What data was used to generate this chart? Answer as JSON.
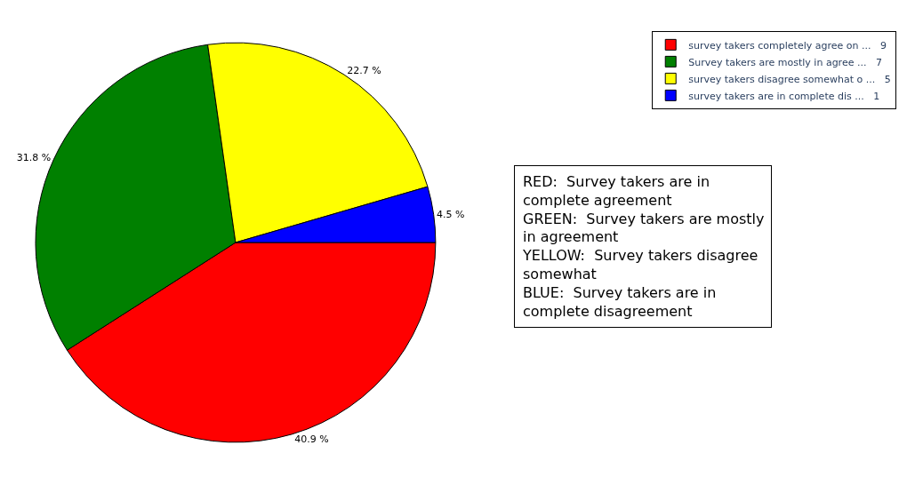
{
  "chart_data": {
    "type": "pie",
    "categories": [
      "survey takers completely agree on ...   9",
      "Survey takers are mostly in agree ...   7",
      "survey takers disagree somewhat o ...   5",
      "survey takers are in complete dis ...   1"
    ],
    "values": [
      40.9,
      31.8,
      22.7,
      4.5
    ],
    "value_labels": [
      "40.9 %",
      "31.8 %",
      "22.7 %",
      "4.5 %"
    ],
    "colors": [
      "#ff0000",
      "#008000",
      "#ffff00",
      "#0000ff"
    ],
    "legend": "top right",
    "annotations": [
      "RED:  Survey takers are in\ncomplete agreement\nGREEN:  Survey takers are mostly\nin agreement\nYELLOW:  Survey takers disagree\nsomewhat\nBLUE:  Survey takers are in\ncomplete disagreement"
    ]
  }
}
